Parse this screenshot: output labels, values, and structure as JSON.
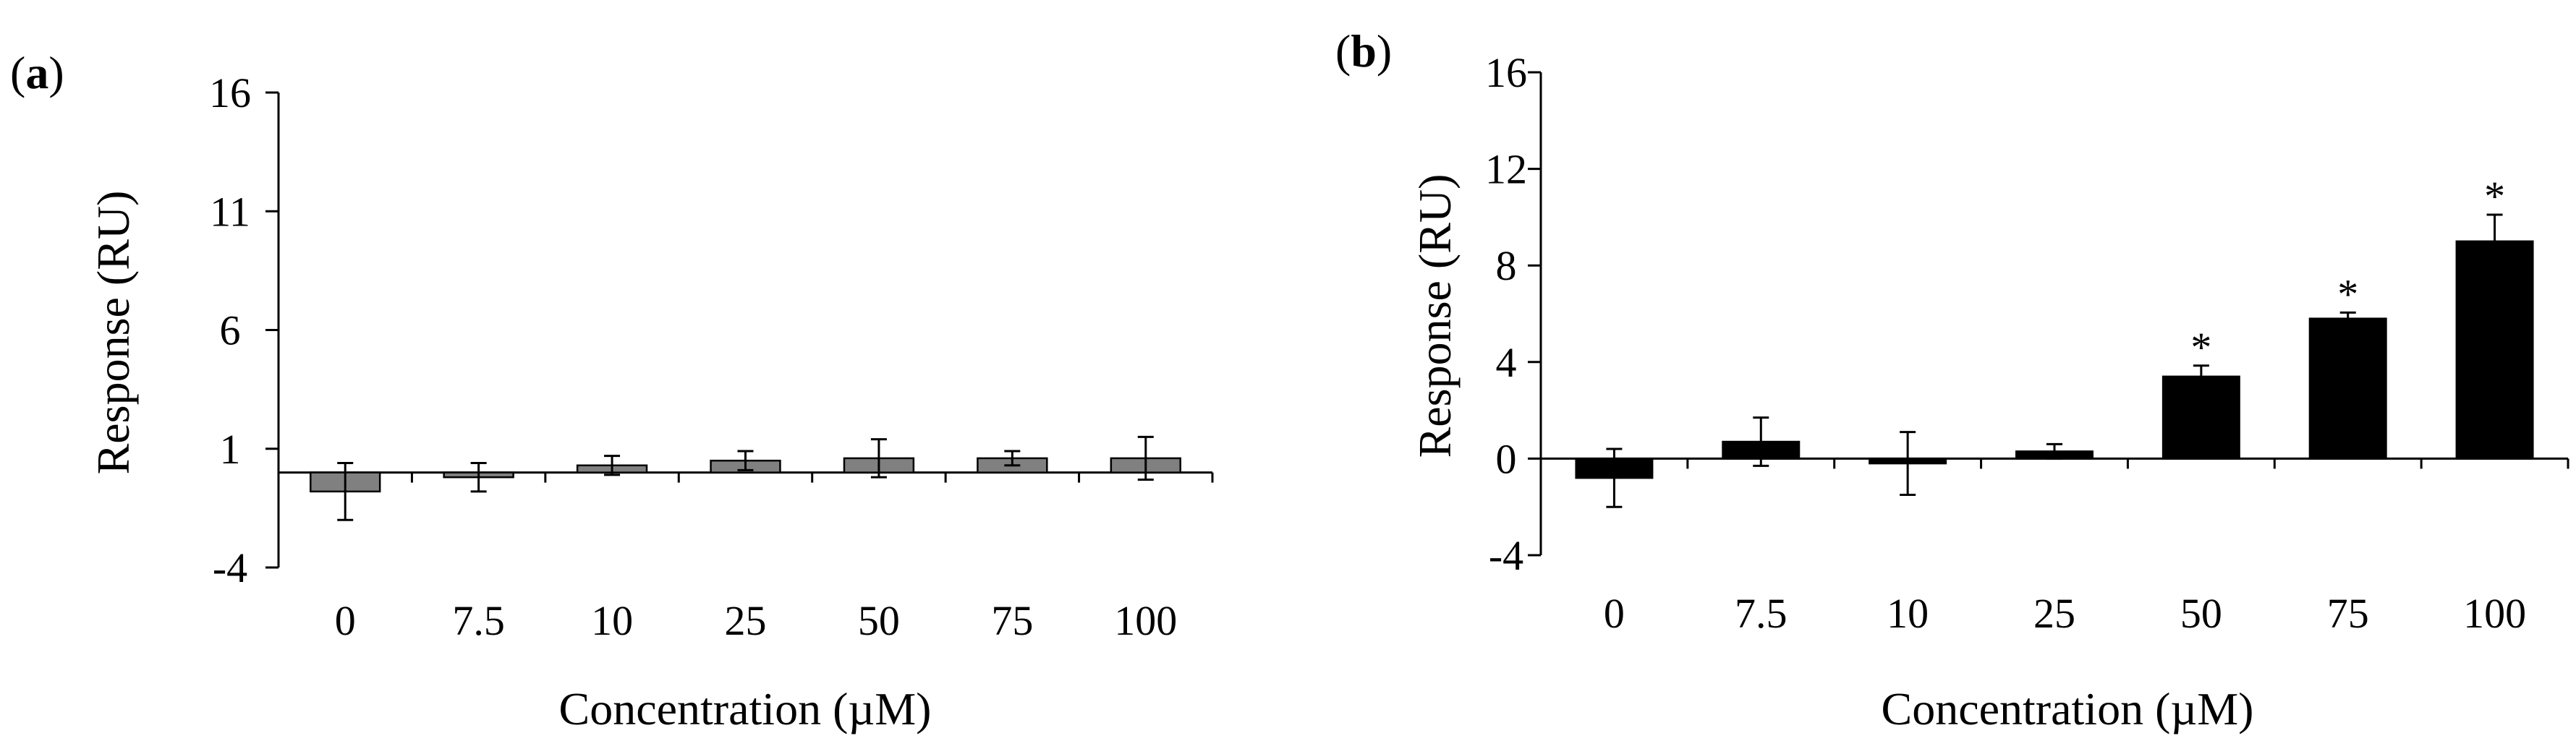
{
  "panels": [
    {
      "label_open": "(",
      "label_letter": "a",
      "label_close": ")",
      "ylabel": "Response (RU)",
      "xlabel": "Concentration (µM)"
    },
    {
      "label_open": "(",
      "label_letter": "b",
      "label_close": ")",
      "ylabel": "Response (RU)",
      "xlabel": "Concentration (µM)"
    }
  ],
  "chart_data": [
    {
      "type": "bar",
      "title": "",
      "xlabel": "Concentration (µM)",
      "ylabel": "Response (RU)",
      "categories": [
        "0",
        "7.5",
        "10",
        "25",
        "50",
        "75",
        "100"
      ],
      "values": [
        -0.8,
        -0.2,
        0.3,
        0.5,
        0.6,
        0.6,
        0.6
      ],
      "error": [
        1.2,
        0.6,
        0.4,
        0.4,
        0.8,
        0.3,
        0.9
      ],
      "yticks": [
        -4,
        1,
        6,
        11,
        16
      ],
      "ylim": [
        -4,
        16
      ],
      "significant": [
        false,
        false,
        false,
        false,
        false,
        false,
        false
      ],
      "bar_color": "#808080",
      "grid": false,
      "legend": "none"
    },
    {
      "type": "bar",
      "title": "",
      "xlabel": "Concentration (µM)",
      "ylabel": "Response (RU)",
      "categories": [
        "0",
        "7.5",
        "10",
        "25",
        "50",
        "75",
        "100"
      ],
      "values": [
        -0.8,
        0.7,
        -0.2,
        0.3,
        3.4,
        5.8,
        9.0
      ],
      "error": [
        1.2,
        1.0,
        1.3,
        0.3,
        0.45,
        0.25,
        1.1
      ],
      "yticks": [
        -4,
        0,
        4,
        8,
        12,
        16
      ],
      "ylim": [
        -4,
        16
      ],
      "significant": [
        false,
        false,
        false,
        false,
        true,
        true,
        true
      ],
      "significance_marker": "*",
      "bar_color": "#000000",
      "grid": false,
      "legend": "none"
    }
  ]
}
